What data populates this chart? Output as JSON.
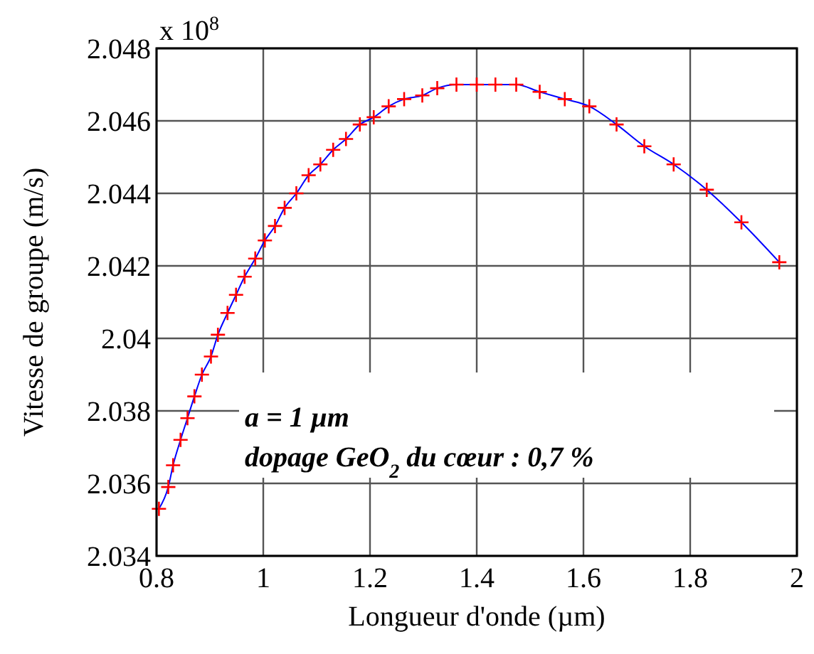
{
  "chart_data": {
    "type": "line",
    "xlabel": "Longueur d'onde (µm)",
    "ylabel": "Vitesse de groupe (m/s)",
    "annotations": [
      "x 10$^{8}$",
      "a = 1 µm",
      "dopage GeO$_{2}$ du cœur : 0,7 %"
    ],
    "x": [
      0.8045,
      0.822,
      0.831,
      0.845,
      0.858,
      0.871,
      0.885,
      0.902,
      0.915,
      0.933,
      0.949,
      0.965,
      0.985,
      1.003,
      1.022,
      1.04,
      1.062,
      1.085,
      1.107,
      1.131,
      1.155,
      1.181,
      1.207,
      1.235,
      1.264,
      1.298,
      1.326,
      1.362,
      1.4,
      1.435,
      1.474,
      1.518,
      1.565,
      1.611,
      1.662,
      1.714,
      1.769,
      1.831,
      1.896,
      1.967
    ],
    "series": [
      {
        "type": "line",
        "color": "#0000ff",
        "marker": "none",
        "values": [
          2.0353,
          2.0359,
          2.0365,
          2.0372,
          2.0378,
          2.0384,
          2.039,
          2.0395,
          2.0401,
          2.0407,
          2.0412,
          2.0417,
          2.0422,
          2.0427,
          2.0431,
          2.0436,
          2.044,
          2.0445,
          2.0448,
          2.0452,
          2.0455,
          2.0459,
          2.0461,
          2.0464,
          2.0466,
          2.0467,
          2.0469,
          2.047,
          2.047,
          2.047,
          2.047,
          2.0468,
          2.0466,
          2.0464,
          2.0459,
          2.0453,
          2.0448,
          2.0441,
          2.0432,
          2.0421
        ]
      },
      {
        "type": "scatter",
        "color": "#ff0000",
        "marker": "cross",
        "values": [
          2.0353,
          2.0359,
          2.0365,
          2.0372,
          2.0378,
          2.0384,
          2.039,
          2.0395,
          2.0401,
          2.0407,
          2.0412,
          2.0417,
          2.0422,
          2.0427,
          2.0431,
          2.0436,
          2.044,
          2.0445,
          2.0448,
          2.0452,
          2.0455,
          2.0459,
          2.0461,
          2.0464,
          2.0466,
          2.0467,
          2.0469,
          2.047,
          2.047,
          2.047,
          2.047,
          2.0468,
          2.0466,
          2.0464,
          2.0459,
          2.0453,
          2.0448,
          2.0441,
          2.0432,
          2.0421
        ]
      }
    ],
    "xlim": [
      0.8,
      2
    ],
    "xticks": [
      0.8,
      1,
      1.2,
      1.4,
      1.6,
      1.8,
      2
    ],
    "ylim": [
      2.034,
      2.048
    ],
    "yticks": [
      2.034,
      2.036,
      2.038,
      2.04,
      2.042,
      2.044,
      2.046,
      2.048
    ],
    "grid": true
  }
}
